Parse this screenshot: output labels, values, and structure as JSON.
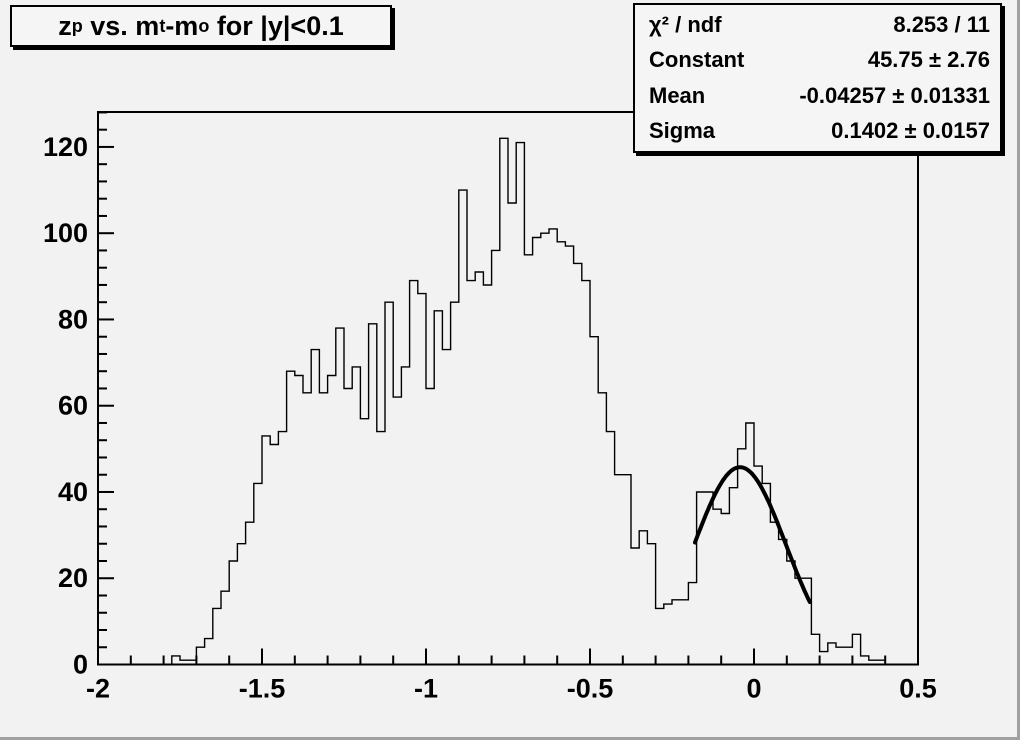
{
  "canvas": {
    "background": "#f2f2f2",
    "bevel_color": "#a0a0a0",
    "line_color": "#000000"
  },
  "title_box": {
    "s0": "z",
    "s1": "p",
    "s2": " vs. m",
    "s3": "t",
    "s4": "-m",
    "s5": "o",
    "s6": " for |y|<0.1",
    "plain": "z_p vs. m_t-m_o for |y|<0.1"
  },
  "stats_box": {
    "rows": [
      {
        "label": "χ² / ndf",
        "value": "8.253 / 11"
      },
      {
        "label": "Constant",
        "value": "45.75 ± 2.76"
      },
      {
        "label": "Mean",
        "value": "-0.04257 ± 0.01331"
      },
      {
        "label": "Sigma",
        "value": "0.1402 ± 0.0157"
      }
    ]
  },
  "chart_data": {
    "type": "bar",
    "subtype": "step-histogram",
    "title": "z_p vs. m_t-m_o for |y|<0.1",
    "xlabel": "",
    "ylabel": "",
    "xlim": [
      -2.0,
      0.5
    ],
    "ylim": [
      0,
      128.1
    ],
    "grid": false,
    "bin_start": -2.0,
    "bin_width": 0.025,
    "values": [
      0,
      0,
      0,
      0,
      0,
      0,
      0,
      0,
      0,
      2,
      1,
      1,
      4,
      6,
      13,
      17,
      24,
      28,
      33,
      42,
      53,
      51,
      54,
      68,
      67,
      63,
      73,
      63,
      67,
      78,
      64,
      69,
      57,
      79,
      54,
      84,
      62,
      69,
      89,
      86,
      64,
      82,
      73,
      84,
      110,
      89,
      91,
      88,
      96,
      122,
      107,
      121,
      95,
      99,
      100,
      101,
      98,
      97,
      93,
      89,
      76,
      63,
      54,
      44,
      44,
      27,
      31,
      28,
      13,
      14,
      15,
      15,
      19,
      40,
      40,
      36,
      35,
      41,
      50,
      56,
      46,
      42,
      33,
      29,
      24,
      20,
      20,
      7,
      3,
      5,
      4,
      4,
      7,
      2,
      1,
      1,
      0,
      0,
      0,
      0
    ],
    "x_major_ticks": [
      -2,
      -1.5,
      -1,
      -0.5,
      0,
      0.5
    ],
    "x_tick_labels": [
      "-2",
      "-1.5",
      "-1",
      "-0.5",
      "0",
      "0.5"
    ],
    "x_minor_step": 0.1,
    "y_major_ticks": [
      0,
      20,
      40,
      60,
      80,
      100,
      120
    ],
    "y_tick_labels": [
      "0",
      "20",
      "40",
      "60",
      "80",
      "100",
      "120"
    ],
    "y_minor_step": 4,
    "histogram_color": "#000000",
    "fit": {
      "type": "gaussian",
      "constant": 45.75,
      "mean": -0.04257,
      "sigma": 0.1402,
      "draw_from": -0.18,
      "draw_to": 0.17,
      "color": "#000000",
      "line_width": 4
    }
  }
}
